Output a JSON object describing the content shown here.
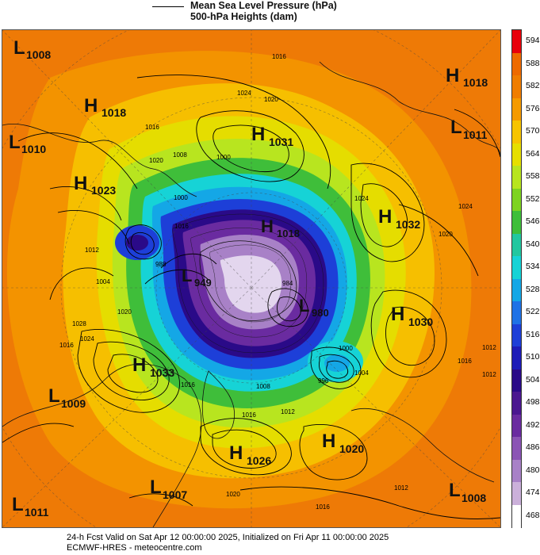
{
  "legend": {
    "line1": "Mean Sea Level Pressure (hPa)",
    "line2": "500-hPa Heights (dam)"
  },
  "colorbar": {
    "labels": [
      "594",
      "588",
      "582",
      "576",
      "570",
      "564",
      "558",
      "552",
      "546",
      "540",
      "534",
      "528",
      "522",
      "516",
      "510",
      "504",
      "498",
      "492",
      "486",
      "480",
      "474",
      "468"
    ],
    "colors": [
      "#e8000b",
      "#ee6a00",
      "#f07d00",
      "#f59a00",
      "#f7c400",
      "#e6df00",
      "#b8e51f",
      "#7ed321",
      "#3fbe3a",
      "#22c7a0",
      "#16d3d6",
      "#14a7e6",
      "#1f72e6",
      "#1d3fd8",
      "#1d1bb8",
      "#2a0a88",
      "#4b1790",
      "#6a2ba0",
      "#8b54b5",
      "#a881c7",
      "#cbb0da",
      "#ffffff"
    ]
  },
  "centers": [
    {
      "type": "L",
      "value": "1008"
    },
    {
      "type": "H",
      "value": "1018"
    },
    {
      "type": "H",
      "value": "1018"
    },
    {
      "type": "L",
      "value": "1010"
    },
    {
      "type": "L",
      "value": "1011"
    },
    {
      "type": "H",
      "value": "1031"
    },
    {
      "type": "H",
      "value": "1023"
    },
    {
      "type": "H",
      "value": "1032"
    },
    {
      "type": "H",
      "value": "1018"
    },
    {
      "type": "L",
      "value": "949"
    },
    {
      "type": "L",
      "value": "980"
    },
    {
      "type": "H",
      "value": "1030"
    },
    {
      "type": "H",
      "value": "1033"
    },
    {
      "type": "L",
      "value": "1009"
    },
    {
      "type": "H",
      "value": "1026"
    },
    {
      "type": "H",
      "value": "1020"
    },
    {
      "type": "L",
      "value": "1007"
    },
    {
      "type": "L",
      "value": "1011"
    },
    {
      "type": "L",
      "value": "1008"
    }
  ],
  "isobar_labels": [
    "1016",
    "1024",
    "1020",
    "1016",
    "1020",
    "1000",
    "1008",
    "1024",
    "1024",
    "1020",
    "1016",
    "1012",
    "1004",
    "1028",
    "1024",
    "1016",
    "1012",
    "1020",
    "1016",
    "1000",
    "1008",
    "1012",
    "1016",
    "1020",
    "1012",
    "1016",
    "1012",
    "1016",
    "996",
    "1000",
    "1004",
    "988",
    "984"
  ],
  "footer": {
    "line1": "24-h Fcst Valid on Sat Apr 12 00:00:00 2025, Initialized on Fri Apr 11 00:00:00 2025",
    "line2": "ECMWF-HRES  - meteocentre.com"
  }
}
